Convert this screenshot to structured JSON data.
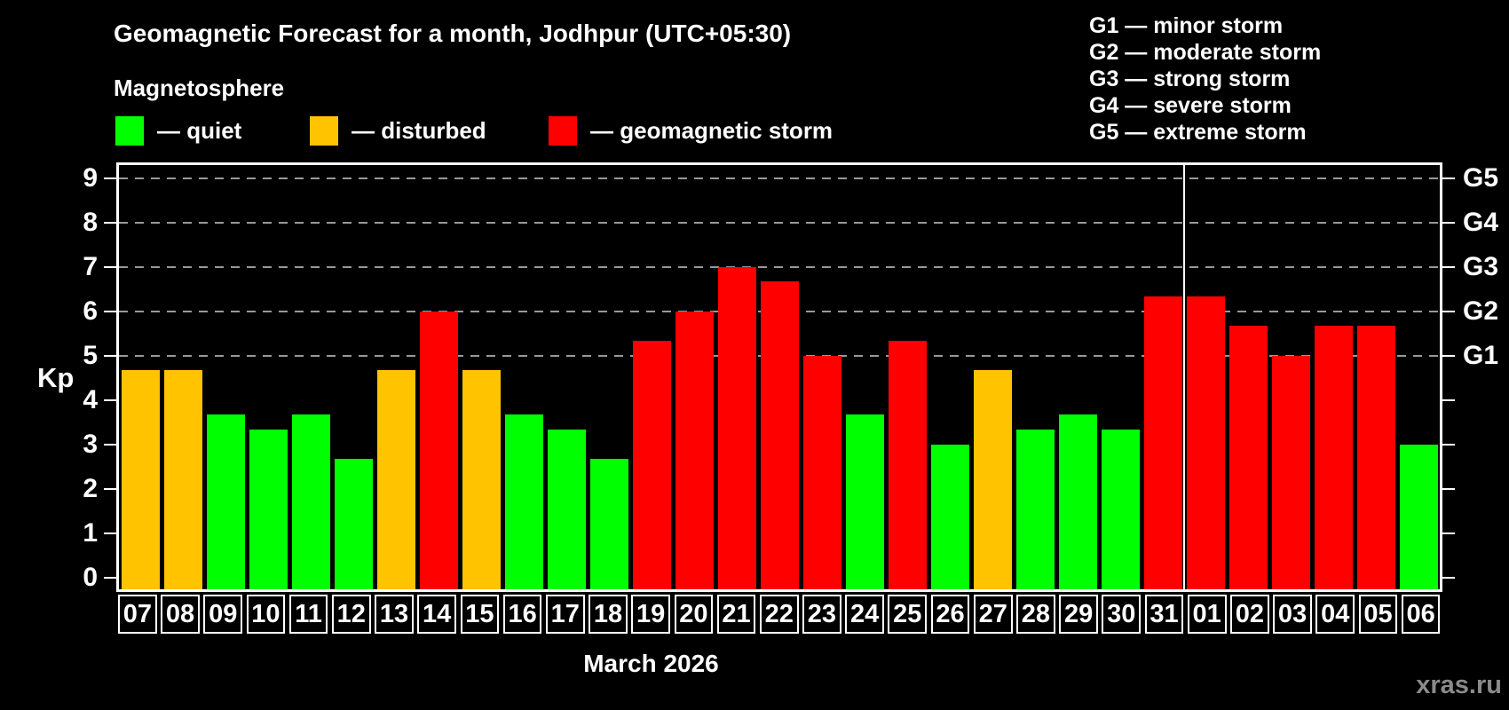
{
  "header": {
    "title": "Geomagnetic Forecast for a month, Jodhpur (UTC+05:30)",
    "subtitle": "Magnetosphere"
  },
  "legend": {
    "items": [
      {
        "key": "quiet",
        "label": "— quiet",
        "color": "#00ff00"
      },
      {
        "key": "disturbed",
        "label": "— disturbed",
        "color": "#ffc300"
      },
      {
        "key": "storm",
        "label": "— geomagnetic storm",
        "color": "#ff0000"
      }
    ]
  },
  "g_legend": {
    "items": [
      "G1 — minor storm",
      "G2 — moderate storm",
      "G3 — strong storm",
      "G4 — severe storm",
      "G5 — extreme storm"
    ]
  },
  "watermark": "xras.ru",
  "chart_data": {
    "type": "bar",
    "title": "Geomagnetic Forecast for a month, Jodhpur (UTC+05:30)",
    "subtitle": "Magnetosphere",
    "ylabel": "Kp",
    "xlabel": "March 2026",
    "ylim": [
      0,
      9
    ],
    "yticks": [
      0,
      1,
      2,
      3,
      4,
      5,
      6,
      7,
      8,
      9
    ],
    "gridlines": [
      5,
      6,
      7,
      8,
      9
    ],
    "grid_style": "dashed horizontal lines at storm levels only",
    "legend_position": "top-left",
    "background": "#000000",
    "axis_color": "#ffffff",
    "gridline_color": "#999999",
    "categories": [
      "07",
      "08",
      "09",
      "10",
      "11",
      "12",
      "13",
      "14",
      "15",
      "16",
      "17",
      "18",
      "19",
      "20",
      "21",
      "22",
      "23",
      "24",
      "25",
      "26",
      "27",
      "28",
      "29",
      "30",
      "31",
      "01",
      "02",
      "03",
      "04",
      "05",
      "06"
    ],
    "values": [
      4.67,
      4.67,
      3.67,
      3.33,
      3.67,
      2.67,
      4.67,
      6,
      4.67,
      3.67,
      3.33,
      2.67,
      5.33,
      6,
      7,
      6.67,
      5,
      3.67,
      5.33,
      3,
      4.67,
      3.33,
      3.67,
      3.33,
      6.33,
      6.33,
      5.67,
      5,
      5.67,
      5.67,
      3
    ],
    "statuses": [
      "disturbed",
      "disturbed",
      "quiet",
      "quiet",
      "quiet",
      "quiet",
      "disturbed",
      "storm",
      "disturbed",
      "quiet",
      "quiet",
      "quiet",
      "storm",
      "storm",
      "storm",
      "storm",
      "storm",
      "quiet",
      "storm",
      "quiet",
      "disturbed",
      "quiet",
      "quiet",
      "quiet",
      "storm",
      "storm",
      "storm",
      "storm",
      "storm",
      "storm",
      "quiet"
    ],
    "status_colors": {
      "quiet": "#00ff00",
      "disturbed": "#ffc300",
      "storm": "#ff0000"
    },
    "right_axis_labels": [
      {
        "value": 5,
        "label": "G1"
      },
      {
        "value": 6,
        "label": "G2"
      },
      {
        "value": 7,
        "label": "G3"
      },
      {
        "value": 8,
        "label": "G4"
      },
      {
        "value": 9,
        "label": "G5"
      }
    ],
    "month_separator_after_index": 24
  }
}
